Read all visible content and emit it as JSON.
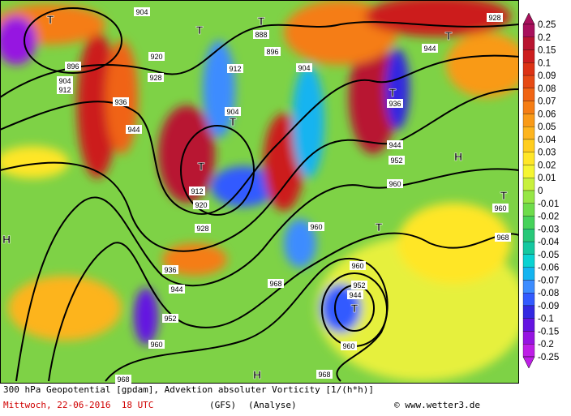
{
  "map": {
    "pressure_labels": [
      "904",
      "888",
      "896",
      "920",
      "896",
      "904",
      "912",
      "928",
      "936",
      "944",
      "912",
      "904",
      "904",
      "912",
      "920",
      "928",
      "936",
      "944",
      "952",
      "960",
      "968",
      "968",
      "968",
      "960",
      "960",
      "952",
      "944",
      "960",
      "960",
      "952",
      "944",
      "936",
      "944",
      "928",
      "960",
      "968"
    ],
    "centers": [
      "T",
      "T",
      "T",
      "T",
      "T",
      "T",
      "T",
      "T",
      "T",
      "T",
      "H",
      "H",
      "H"
    ]
  },
  "colorbar": {
    "labels": [
      "0.25",
      "0.2",
      "0.15",
      "0.1",
      "0.09",
      "0.08",
      "0.07",
      "0.06",
      "0.05",
      "0.04",
      "0.03",
      "0.02",
      "0.01",
      "0",
      "-0.01",
      "-0.02",
      "-0.03",
      "-0.04",
      "-0.05",
      "-0.06",
      "-0.07",
      "-0.08",
      "-0.09",
      "-0.1",
      "-0.15",
      "-0.2",
      "-0.25"
    ],
    "colors": [
      "#a8105c",
      "#b81430",
      "#cc1e1e",
      "#dc3214",
      "#e64a14",
      "#f06414",
      "#f57d14",
      "#f99a18",
      "#fdb41e",
      "#ffcd1e",
      "#ffe628",
      "#f5f532",
      "#c8f03c",
      "#96e646",
      "#6edc4b",
      "#46d25a",
      "#28c878",
      "#14c8a0",
      "#0ad2d2",
      "#14b4f0",
      "#3c8cff",
      "#325aff",
      "#3228e1",
      "#6414e1",
      "#9614e1",
      "#be1ee6"
    ]
  },
  "footer": {
    "title": "300 hPa Geopotential [gpdam], Advektion absoluter Vorticity [1/(h*h)]",
    "date": "Mittwoch, 22-06-2016  18 UTC",
    "model": "(GFS)",
    "run": "(Analyse)",
    "credit": "© www.wetter3.de"
  }
}
